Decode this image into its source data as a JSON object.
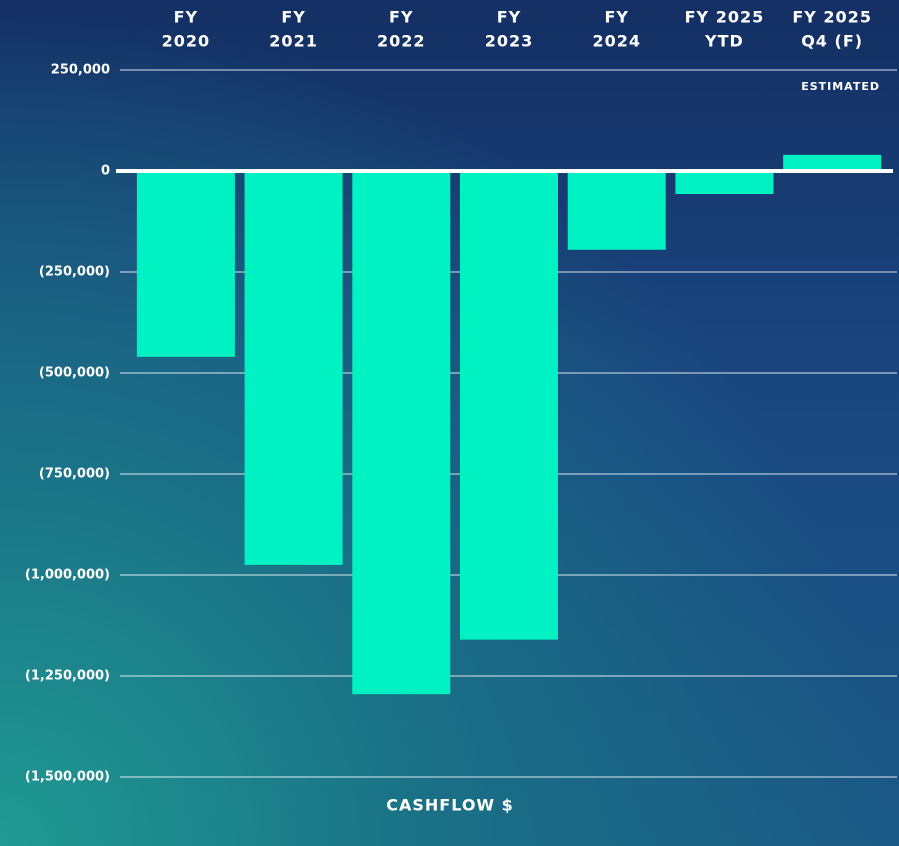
{
  "chart_data": {
    "type": "bar",
    "categories": [
      [
        "FY",
        "2020"
      ],
      [
        "FY",
        "2021"
      ],
      [
        "FY",
        "2022"
      ],
      [
        "FY",
        "2023"
      ],
      [
        "FY",
        "2024"
      ],
      [
        "FY 2025",
        "YTD"
      ],
      [
        "FY 2025",
        "Q4 (F)"
      ]
    ],
    "values": [
      -460000,
      -975000,
      -1295000,
      -1160000,
      -195000,
      -57000,
      40000
    ],
    "color": "#00f2c3",
    "ylim": [
      -1500000,
      250000
    ],
    "yticks": [
      {
        "value": 250000,
        "label": "250,000"
      },
      0,
      {
        "value": -250000,
        "label": "(250,000)"
      },
      {
        "value": -500000,
        "label": "(500,000)"
      },
      {
        "value": -750000,
        "label": "(750,000)"
      },
      {
        "value": -1000000,
        "label": "(1,000,000)"
      },
      {
        "value": -1250000,
        "label": "(1,250,000)"
      },
      {
        "value": -1500000,
        "label": "(1,500,000)"
      }
    ],
    "grid": true,
    "annotation": "ESTIMATED",
    "x_label": "CASHFLOW $"
  }
}
